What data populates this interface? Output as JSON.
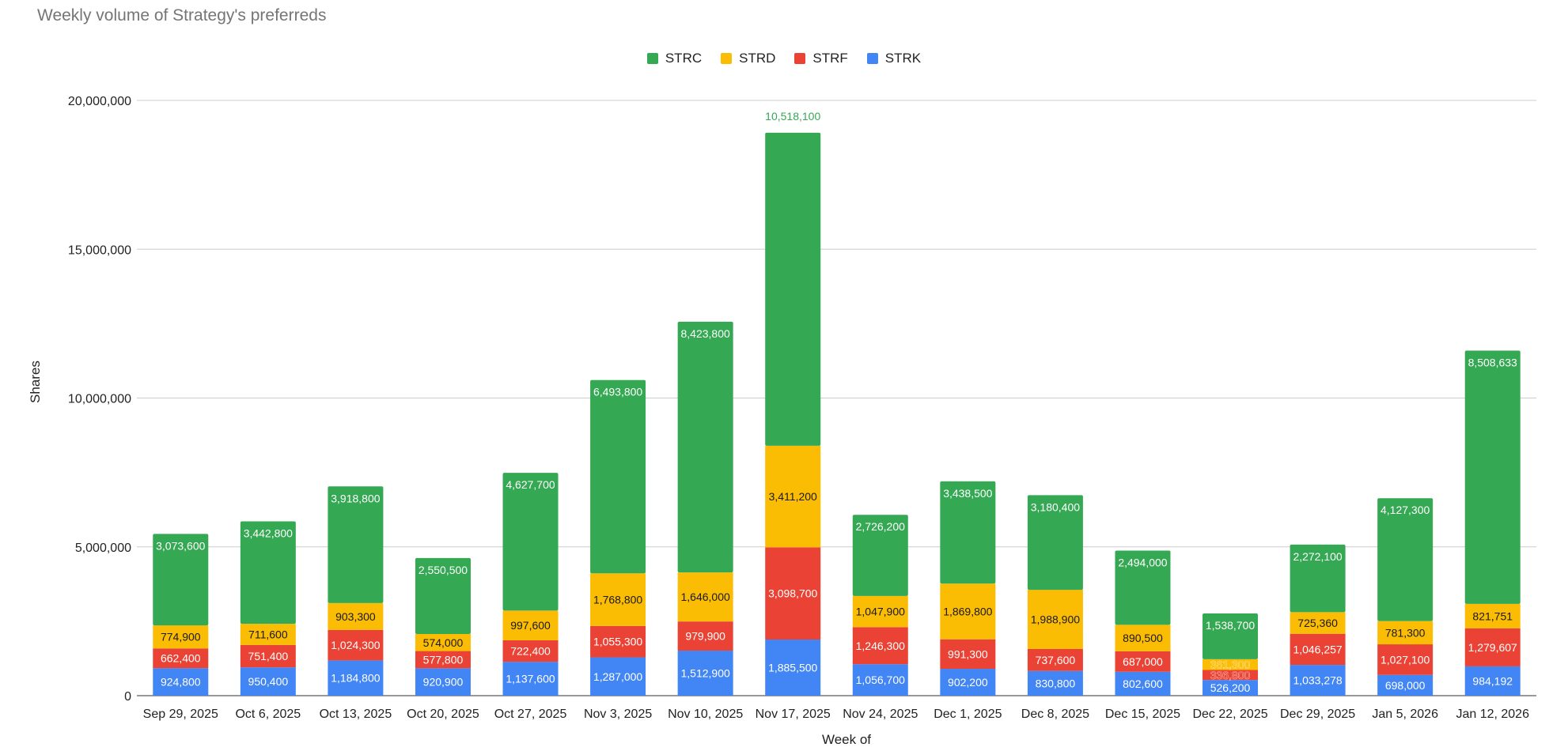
{
  "chart_data": {
    "type": "bar",
    "stacked": true,
    "title": "Weekly volume of Strategy's preferreds",
    "xlabel": "Week of",
    "ylabel": "Shares",
    "ylim": [
      0,
      20000000
    ],
    "yticks": [
      0,
      5000000,
      10000000,
      15000000,
      20000000
    ],
    "ytick_labels": [
      "0",
      "5,000,000",
      "10,000,000",
      "15,000,000",
      "20,000,000"
    ],
    "legend_position": "top-center",
    "categories": [
      "Sep 29, 2025",
      "Oct 6, 2025",
      "Oct 13, 2025",
      "Oct 20, 2025",
      "Oct 27, 2025",
      "Nov 3, 2025",
      "Nov 10, 2025",
      "Nov 17, 2025",
      "Nov 24, 2025",
      "Dec 1, 2025",
      "Dec 8, 2025",
      "Dec 15, 2025",
      "Dec 22, 2025",
      "Dec 29, 2025",
      "Jan 5, 2026",
      "Jan 12, 2026"
    ],
    "series": [
      {
        "name": "STRK",
        "color": "#4285f4",
        "values": [
          924800,
          950400,
          1184800,
          920900,
          1137600,
          1287000,
          1512900,
          1885500,
          1056700,
          902200,
          830800,
          802600,
          526200,
          1033278,
          698000,
          984192
        ],
        "labels": [
          "924,800",
          "950,400",
          "1,184,800",
          "920,900",
          "1,137,600",
          "1,287,000",
          "1,512,900",
          "1,885,500",
          "1,056,700",
          "902,200",
          "830,800",
          "802,600",
          "526,200",
          "1,033,278",
          "698,000",
          "984,192"
        ]
      },
      {
        "name": "STRF",
        "color": "#ea4335",
        "values": [
          662400,
          751400,
          1024300,
          577800,
          722400,
          1055300,
          979900,
          3098700,
          1246300,
          991300,
          737600,
          687000,
          336800,
          1046257,
          1027100,
          1279607
        ],
        "labels": [
          "662,400",
          "751,400",
          "1,024,300",
          "577,800",
          "722,400",
          "1,055,300",
          "979,900",
          "3,098,700",
          "1,246,300",
          "991,300",
          "737,600",
          "687,000",
          "336,800",
          "1,046,257",
          "1,027,100",
          "1,279,607"
        ]
      },
      {
        "name": "STRD",
        "color": "#fbbc04",
        "values": [
          774900,
          711600,
          903300,
          574000,
          997600,
          1768800,
          1646000,
          3411200,
          1047900,
          1869800,
          1988900,
          890500,
          361300,
          725360,
          781300,
          821751
        ],
        "labels": [
          "774,900",
          "711,600",
          "903,300",
          "574,000",
          "997,600",
          "1,768,800",
          "1,646,000",
          "3,411,200",
          "1,047,900",
          "1,869,800",
          "1,988,900",
          "890,500",
          "361,300",
          "725,360",
          "781,300",
          "821,751"
        ]
      },
      {
        "name": "STRC",
        "color": "#34a853",
        "values": [
          3073600,
          3442800,
          3918800,
          2550500,
          4627700,
          6493800,
          8423800,
          10518100,
          2726200,
          3438500,
          3180400,
          2494000,
          1538700,
          2272100,
          4127300,
          8508633
        ],
        "labels": [
          "3,073,600",
          "3,442,800",
          "3,918,800",
          "2,550,500",
          "4,627,700",
          "6,493,800",
          "8,423,800",
          "10,518,100",
          "2,726,200",
          "3,438,500",
          "3,180,400",
          "2,494,000",
          "1,538,700",
          "2,272,100",
          "4,127,300",
          "8,508,633"
        ]
      }
    ],
    "legend_order": [
      "STRC",
      "STRD",
      "STRF",
      "STRK"
    ]
  }
}
